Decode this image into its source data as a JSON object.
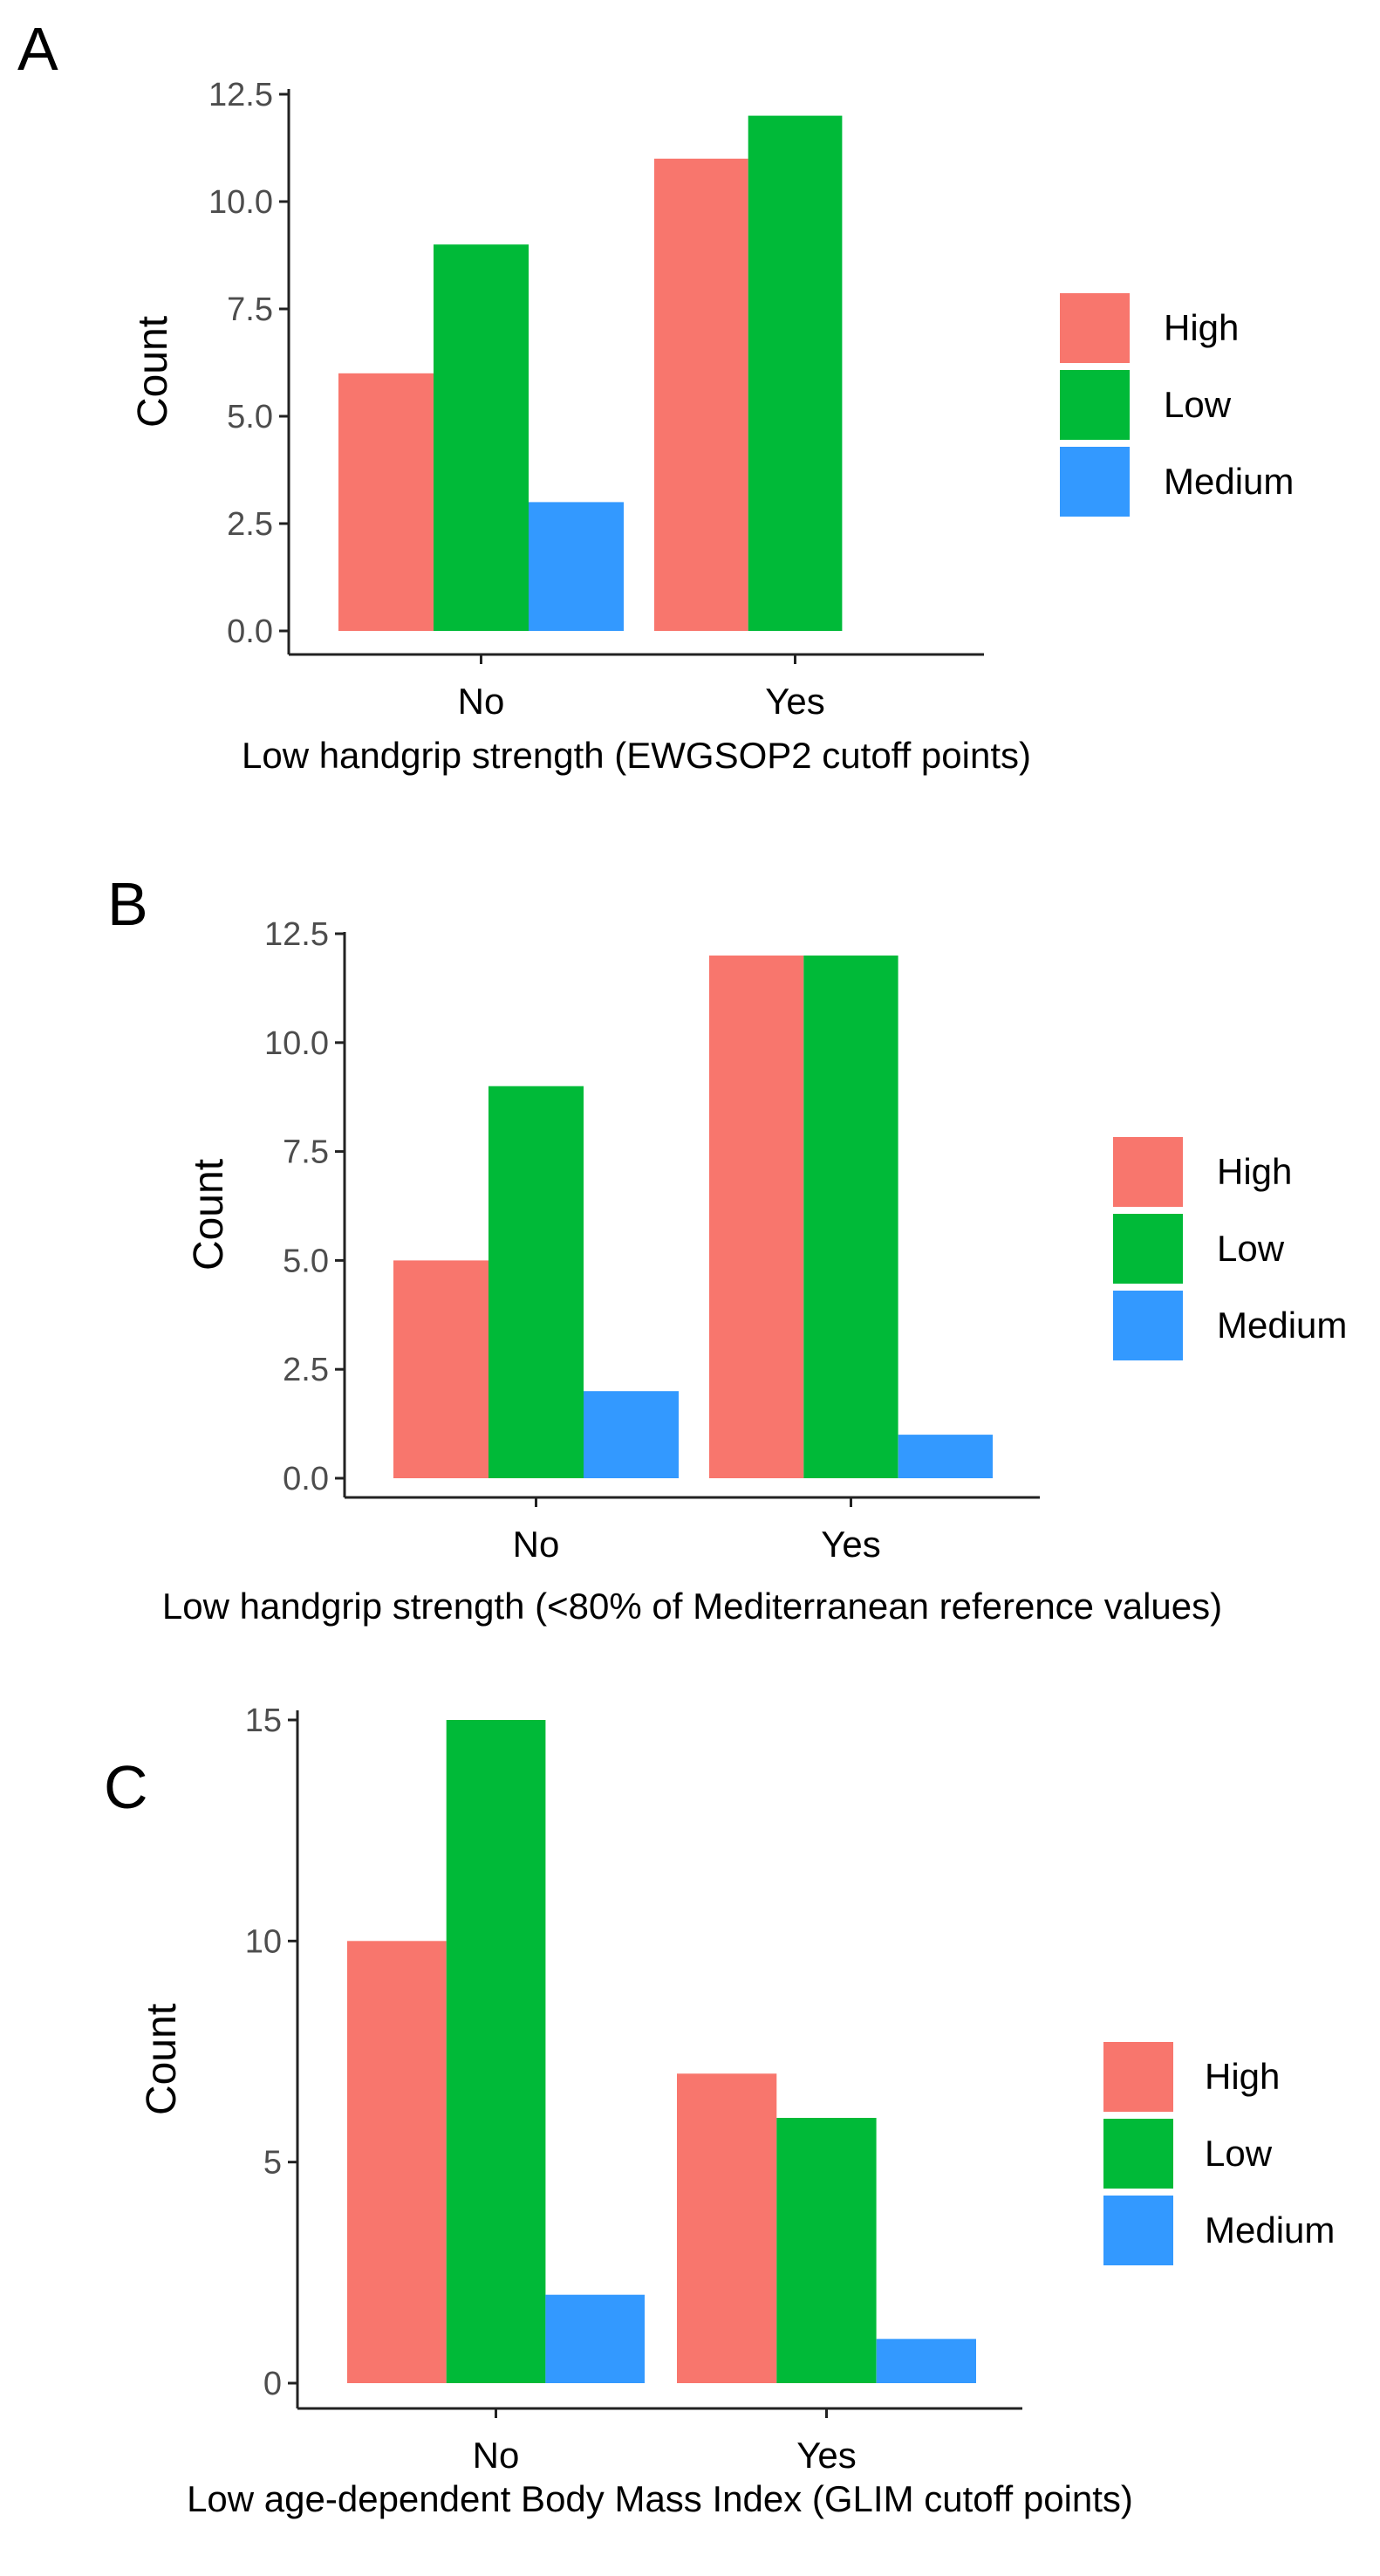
{
  "chart_data": [
    {
      "panel_label": "A",
      "type": "bar",
      "categories": [
        "No",
        "Yes"
      ],
      "series": [
        {
          "name": "High",
          "values": [
            6,
            11
          ]
        },
        {
          "name": "Low",
          "values": [
            9,
            12
          ]
        },
        {
          "name": "Medium",
          "values": [
            3,
            0
          ]
        }
      ],
      "xlabel": "Low handgrip strength (EWGSOP2 cutoff points)",
      "ylabel": "Count",
      "ylim": [
        0,
        12.5
      ],
      "yticks": [
        0,
        2.5,
        5,
        7.5,
        10,
        12.5
      ],
      "ytick_labels": [
        "0.0",
        "2.5",
        "5.0",
        "7.5",
        "10.0",
        "12.5"
      ],
      "legend_position": "right"
    },
    {
      "panel_label": "B",
      "type": "bar",
      "categories": [
        "No",
        "Yes"
      ],
      "series": [
        {
          "name": "High",
          "values": [
            5,
            12
          ]
        },
        {
          "name": "Low",
          "values": [
            9,
            12
          ]
        },
        {
          "name": "Medium",
          "values": [
            2,
            1
          ]
        }
      ],
      "xlabel": "Low handgrip strength (<80% of Mediterranean reference values)",
      "ylabel": "Count",
      "ylim": [
        0,
        12.5
      ],
      "yticks": [
        0,
        2.5,
        5,
        7.5,
        10,
        12.5
      ],
      "ytick_labels": [
        "0.0",
        "2.5",
        "5.0",
        "7.5",
        "10.0",
        "12.5"
      ],
      "legend_position": "right"
    },
    {
      "panel_label": "C",
      "type": "bar",
      "categories": [
        "No",
        "Yes"
      ],
      "series": [
        {
          "name": "High",
          "values": [
            10,
            7
          ]
        },
        {
          "name": "Low",
          "values": [
            15,
            6
          ]
        },
        {
          "name": "Medium",
          "values": [
            2,
            1
          ]
        }
      ],
      "xlabel": "Low age-dependent Body Mass Index (GLIM cutoff points)",
      "ylabel": "Count",
      "ylim": [
        0,
        15
      ],
      "yticks": [
        0,
        5,
        10,
        15
      ],
      "ytick_labels": [
        "0",
        "5",
        "10",
        "15"
      ],
      "legend_position": "right"
    }
  ],
  "colors": {
    "High": "#F8766D",
    "Low": "#00BA38",
    "Medium": "#3399FF",
    "axis": "#222222",
    "tick_label": "#4d4d4d",
    "text": "#000000"
  }
}
